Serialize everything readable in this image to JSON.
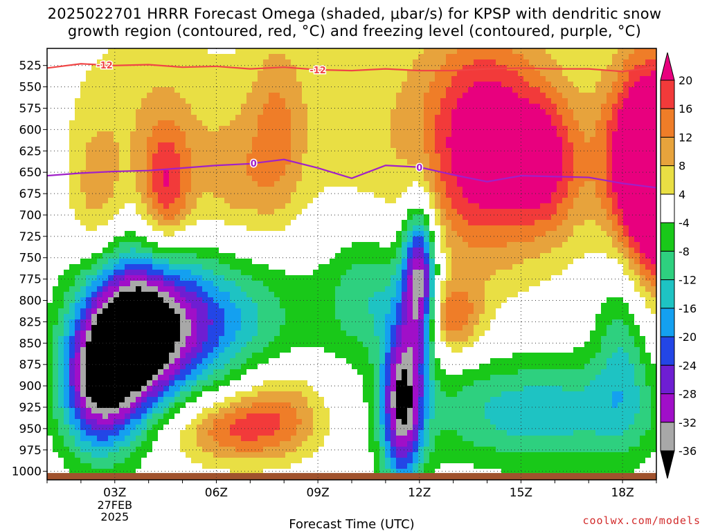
{
  "title_line1": "2025022701 HRRR Forecast Omega (shaded, μbar/s) for KPSP with dendritic snow",
  "title_line2": "growth region (contoured, red, °C) and freezing level (contoured, purple, °C)",
  "footer": "coolwx.com/models",
  "chart_data": {
    "type": "heatmap",
    "title": "2025022701 HRRR Forecast Omega (shaded, μbar/s) for KPSP with dendritic snow growth region (contoured, red, °C) and freezing level (contoured, purple, °C)",
    "xlabel": "Forecast Time (UTC)",
    "ylabel": "",
    "x_range_hours": [
      0,
      18
    ],
    "x_ticks": [
      {
        "hour": 2,
        "label": "03Z",
        "sub": [
          "27FEB",
          "2025"
        ]
      },
      {
        "hour": 5,
        "label": "06Z"
      },
      {
        "hour": 8,
        "label": "09Z"
      },
      {
        "hour": 11,
        "label": "12Z"
      },
      {
        "hour": 14,
        "label": "15Z"
      },
      {
        "hour": 17,
        "label": "18Z"
      }
    ],
    "y_axis": "pressure (hPa), inverted",
    "y_range": [
      505,
      1010
    ],
    "y_ticks": [
      525,
      550,
      575,
      600,
      625,
      650,
      675,
      700,
      725,
      750,
      775,
      800,
      825,
      850,
      875,
      900,
      925,
      950,
      975,
      1000
    ],
    "grid": true,
    "colorbar": {
      "labels": [
        "20",
        "16",
        "12",
        "8",
        "4",
        "-4",
        "-8",
        "-12",
        "-16",
        "-20",
        "-24",
        "-28",
        "-32",
        "-36"
      ],
      "bins": [
        {
          "min": 20,
          "color": "#e8007e"
        },
        {
          "min": 16,
          "max": 20,
          "color": "#f23a3a"
        },
        {
          "min": 12,
          "max": 16,
          "color": "#ef7d28"
        },
        {
          "min": 8,
          "max": 12,
          "color": "#e7a33c"
        },
        {
          "min": 4,
          "max": 8,
          "color": "#e9df44"
        },
        {
          "min": -4,
          "max": 4,
          "color": "#ffffff"
        },
        {
          "min": -8,
          "max": -4,
          "color": "#19c819"
        },
        {
          "min": -12,
          "max": -8,
          "color": "#2ed07f"
        },
        {
          "min": -16,
          "max": -12,
          "color": "#1ec3c3"
        },
        {
          "min": -20,
          "max": -16,
          "color": "#14a0f0"
        },
        {
          "min": -24,
          "max": -20,
          "color": "#2346e6"
        },
        {
          "min": -28,
          "max": -24,
          "color": "#6e1ed2"
        },
        {
          "min": -32,
          "max": -28,
          "color": "#a00fc8"
        },
        {
          "min": -36,
          "max": -32,
          "color": "#a8a8a8"
        },
        {
          "max": -36,
          "color": "#000000"
        }
      ]
    },
    "omega_features": [
      {
        "hour": 2.5,
        "p": 840,
        "peak": -40,
        "sx": 1.1,
        "sy": 65
      },
      {
        "hour": 1.5,
        "p": 905,
        "peak": -26,
        "sx": 0.8,
        "sy": 55
      },
      {
        "hour": 4.2,
        "p": 825,
        "peak": -18,
        "sx": 1.4,
        "sy": 55
      },
      {
        "hour": 6.5,
        "p": 820,
        "peak": -7,
        "sx": 1.6,
        "sy": 70
      },
      {
        "hour": 10.5,
        "p": 920,
        "peak": -34,
        "sx": 0.45,
        "sy": 70
      },
      {
        "hour": 11,
        "p": 775,
        "peak": -34,
        "sx": 0.35,
        "sy": 60
      },
      {
        "hour": 9.5,
        "p": 790,
        "peak": -12,
        "sx": 0.9,
        "sy": 55
      },
      {
        "hour": 14.5,
        "p": 930,
        "peak": -15,
        "sx": 2.5,
        "sy": 45
      },
      {
        "hour": 17,
        "p": 830,
        "peak": -12,
        "sx": 0.6,
        "sy": 90
      },
      {
        "hour": 3.5,
        "p": 670,
        "peak": 18,
        "sx": 0.55,
        "sy": 55
      },
      {
        "hour": 1.5,
        "p": 680,
        "peak": 10,
        "sx": 0.6,
        "sy": 60
      },
      {
        "hour": 3,
        "p": 560,
        "peak": 6,
        "sx": 1.8,
        "sy": 70
      },
      {
        "hour": 5.5,
        "p": 665,
        "peak": 8,
        "sx": 0.9,
        "sy": 55
      },
      {
        "hour": 6.8,
        "p": 600,
        "peak": 9,
        "sx": 0.6,
        "sy": 80
      },
      {
        "hour": 5.5,
        "p": 950,
        "peak": 16,
        "sx": 1.4,
        "sy": 30
      },
      {
        "hour": 7,
        "p": 920,
        "peak": 10,
        "sx": 1.0,
        "sy": 40
      },
      {
        "hour": 13,
        "p": 620,
        "peak": 21,
        "sx": 1.2,
        "sy": 90
      },
      {
        "hour": 14.8,
        "p": 640,
        "peak": 15,
        "sx": 0.7,
        "sy": 60
      },
      {
        "hour": 11,
        "p": 600,
        "peak": 7,
        "sx": 3.5,
        "sy": 120
      },
      {
        "hour": 12,
        "p": 820,
        "peak": 14,
        "sx": 0.6,
        "sy": 30
      },
      {
        "hour": 18,
        "p": 650,
        "peak": 45,
        "sx": 1.0,
        "sy": 90
      }
    ],
    "series": [
      {
        "name": "-12",
        "color": "#f04545",
        "x": [
          0,
          1,
          2,
          3,
          4,
          5,
          6,
          7,
          8,
          9,
          10,
          11,
          12,
          13,
          14,
          15,
          16,
          17,
          18
        ],
        "y": [
          528,
          523,
          525,
          524,
          527,
          526,
          529,
          527,
          530,
          531,
          529,
          531,
          531,
          529,
          528,
          529,
          529,
          532,
          527
        ],
        "labels": [
          {
            "hour": 1.7,
            "text": "-12"
          },
          {
            "hour": 8,
            "text": "-12"
          }
        ]
      },
      {
        "name": "0",
        "color": "#a020c8",
        "x": [
          0,
          1,
          2,
          3,
          4,
          5,
          6,
          7,
          8,
          9,
          10,
          11,
          12,
          13,
          14,
          15,
          16,
          17,
          18
        ],
        "y": [
          654,
          651,
          649,
          648,
          645,
          642,
          640,
          635,
          645,
          657,
          642,
          644,
          653,
          661,
          654,
          655,
          656,
          663,
          668
        ],
        "labels": [
          {
            "hour": 6.1,
            "text": "0"
          },
          {
            "hour": 11,
            "text": "0"
          }
        ]
      }
    ],
    "ground_layer": {
      "p_top": 1002,
      "color": "#a0522d"
    }
  }
}
